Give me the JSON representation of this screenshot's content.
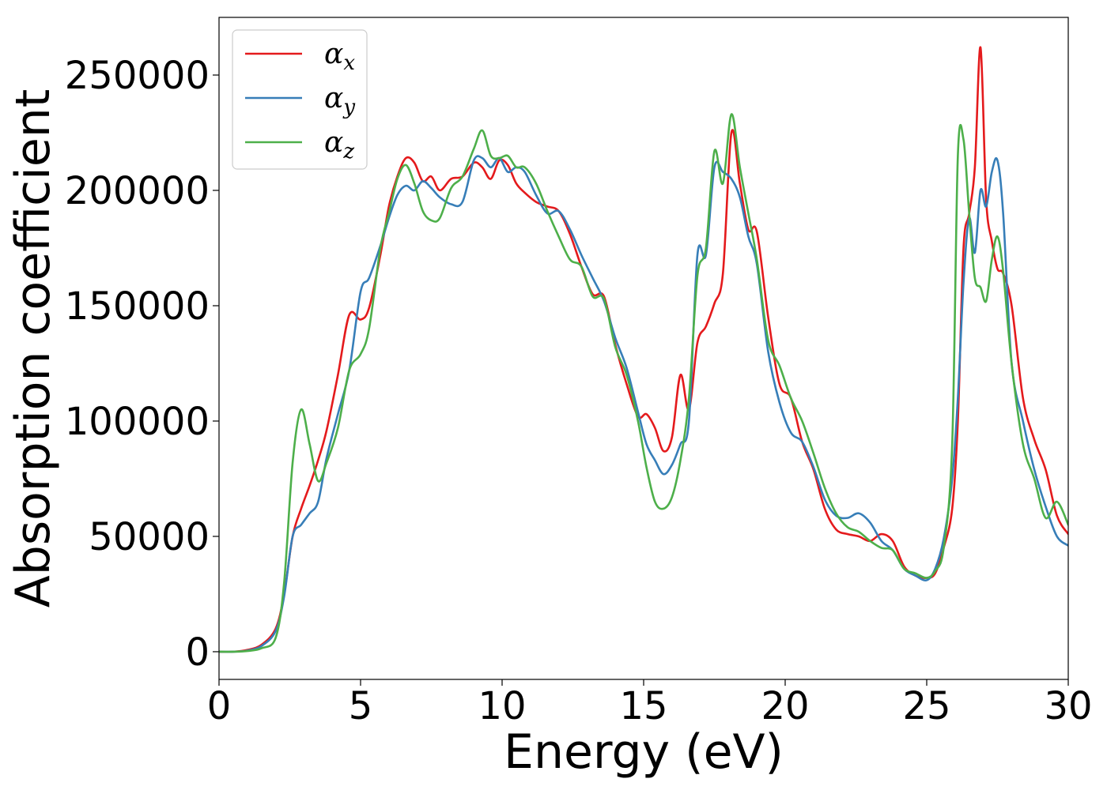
{
  "chart_data": {
    "type": "line",
    "title": "",
    "xlabel": "Energy (eV)",
    "ylabel": "Absorption coefficient",
    "xlim": [
      0,
      30
    ],
    "ylim": [
      -12000,
      275000
    ],
    "xticks": [
      0,
      5,
      10,
      15,
      20,
      25,
      30
    ],
    "yticks": [
      0,
      50000,
      100000,
      150000,
      200000,
      250000
    ],
    "xtick_labels": [
      "0",
      "5",
      "10",
      "15",
      "20",
      "25",
      "30"
    ],
    "ytick_labels": [
      "0",
      "50000",
      "100000",
      "150000",
      "200000",
      "250000"
    ],
    "grid": false,
    "legend_position": "top-left",
    "series": [
      {
        "name": "α_x",
        "legend_base": "α",
        "legend_sub": "x",
        "color": "#e41a1c",
        "x": [
          0,
          0.5,
          1.0,
          1.5,
          2.0,
          2.3,
          2.6,
          2.9,
          3.2,
          3.5,
          3.8,
          4.2,
          4.6,
          5.0,
          5.3,
          5.7,
          6.0,
          6.3,
          6.6,
          6.9,
          7.2,
          7.5,
          7.8,
          8.2,
          8.6,
          9.0,
          9.3,
          9.6,
          9.9,
          10.2,
          10.5,
          10.8,
          11.2,
          11.6,
          12.0,
          12.4,
          12.8,
          13.2,
          13.6,
          14.0,
          14.4,
          14.8,
          15.1,
          15.4,
          15.7,
          16.0,
          16.3,
          16.6,
          16.9,
          17.2,
          17.5,
          17.8,
          18.1,
          18.4,
          18.7,
          19.0,
          19.4,
          19.8,
          20.2,
          20.6,
          21.0,
          21.4,
          21.8,
          22.2,
          22.6,
          23.0,
          23.4,
          23.8,
          24.2,
          24.6,
          25.0,
          25.3,
          25.6,
          25.9,
          26.1,
          26.3,
          26.5,
          26.7,
          26.9,
          27.1,
          27.3,
          27.5,
          27.7,
          28.0,
          28.4,
          28.8,
          29.2,
          29.6,
          30.0
        ],
        "values": [
          0,
          0,
          800,
          3000,
          10000,
          25000,
          50000,
          62000,
          72000,
          83000,
          96000,
          120000,
          146000,
          144000,
          149000,
          172000,
          193000,
          206000,
          214000,
          212000,
          204000,
          206000,
          200000,
          205000,
          206000,
          212000,
          210000,
          205000,
          213000,
          211000,
          203000,
          199000,
          195000,
          193000,
          191000,
          181000,
          167000,
          155000,
          154000,
          133000,
          116000,
          102000,
          103000,
          97000,
          87000,
          93000,
          120000,
          105000,
          134000,
          141000,
          151000,
          164000,
          225000,
          203000,
          183000,
          182000,
          145000,
          116000,
          110000,
          91000,
          79000,
          62000,
          53000,
          51000,
          50000,
          48000,
          51000,
          48000,
          37000,
          33000,
          32000,
          34000,
          45000,
          62000,
          100000,
          175000,
          190000,
          210000,
          262000,
          196000,
          178000,
          166000,
          164000,
          150000,
          110000,
          92000,
          79000,
          59000,
          51000
        ]
      },
      {
        "name": "α_y",
        "legend_base": "α",
        "legend_sub": "y",
        "color": "#377eb8",
        "x": [
          0,
          0.5,
          1.0,
          1.5,
          2.0,
          2.3,
          2.6,
          2.9,
          3.2,
          3.5,
          3.8,
          4.2,
          4.6,
          5.0,
          5.3,
          5.7,
          6.0,
          6.3,
          6.6,
          6.9,
          7.2,
          7.5,
          7.8,
          8.2,
          8.6,
          9.0,
          9.3,
          9.6,
          9.9,
          10.2,
          10.5,
          10.8,
          11.2,
          11.6,
          12.0,
          12.4,
          12.8,
          13.2,
          13.6,
          14.0,
          14.4,
          14.8,
          15.1,
          15.4,
          15.7,
          16.0,
          16.3,
          16.6,
          16.9,
          17.2,
          17.5,
          17.8,
          18.1,
          18.4,
          18.7,
          19.0,
          19.4,
          19.8,
          20.2,
          20.6,
          21.0,
          21.4,
          21.8,
          22.2,
          22.6,
          23.0,
          23.4,
          23.8,
          24.2,
          24.6,
          25.0,
          25.3,
          25.6,
          25.9,
          26.1,
          26.3,
          26.5,
          26.7,
          26.9,
          27.1,
          27.3,
          27.5,
          27.7,
          28.0,
          28.4,
          28.8,
          29.2,
          29.6,
          30.0
        ],
        "values": [
          0,
          0,
          500,
          2500,
          9000,
          24000,
          50000,
          55000,
          60000,
          65000,
          84000,
          103000,
          122000,
          156000,
          162000,
          176000,
          188000,
          198000,
          202000,
          200000,
          204000,
          201000,
          197000,
          194000,
          195000,
          213000,
          214000,
          210000,
          214000,
          208000,
          210000,
          208000,
          198000,
          190000,
          191000,
          183000,
          172000,
          162000,
          152000,
          136000,
          123000,
          104000,
          90000,
          83000,
          77000,
          81000,
          90000,
          100000,
          172000,
          172000,
          210000,
          208000,
          205000,
          197000,
          180000,
          168000,
          130000,
          108000,
          95000,
          91000,
          80000,
          66000,
          59000,
          58000,
          60000,
          56000,
          48000,
          44000,
          36000,
          33000,
          31000,
          36000,
          49000,
          75000,
          110000,
          160000,
          188000,
          173000,
          200000,
          193000,
          208000,
          213000,
          190000,
          125000,
          100000,
          79000,
          63000,
          50000,
          46000
        ]
      },
      {
        "name": "α_z",
        "legend_base": "α",
        "legend_sub": "z",
        "color": "#4daf4a",
        "x": [
          0,
          0.5,
          1.0,
          1.5,
          2.0,
          2.3,
          2.6,
          2.9,
          3.2,
          3.5,
          3.8,
          4.2,
          4.6,
          5.0,
          5.3,
          5.7,
          6.0,
          6.3,
          6.6,
          6.9,
          7.2,
          7.5,
          7.8,
          8.2,
          8.6,
          9.0,
          9.3,
          9.6,
          9.9,
          10.2,
          10.5,
          10.8,
          11.2,
          11.6,
          12.0,
          12.4,
          12.8,
          13.2,
          13.6,
          14.0,
          14.4,
          14.8,
          15.1,
          15.4,
          15.7,
          16.0,
          16.3,
          16.6,
          16.9,
          17.2,
          17.5,
          17.8,
          18.1,
          18.4,
          18.7,
          19.0,
          19.4,
          19.8,
          20.2,
          20.6,
          21.0,
          21.4,
          21.8,
          22.2,
          22.6,
          23.0,
          23.4,
          23.8,
          24.2,
          24.6,
          25.0,
          25.3,
          25.6,
          25.9,
          26.1,
          26.3,
          26.5,
          26.7,
          26.9,
          27.1,
          27.3,
          27.5,
          27.7,
          28.0,
          28.4,
          28.8,
          29.2,
          29.6,
          30.0
        ],
        "values": [
          0,
          0,
          300,
          1500,
          6000,
          30000,
          82000,
          105000,
          90000,
          74000,
          82000,
          97000,
          122000,
          129000,
          140000,
          175000,
          190000,
          205000,
          211000,
          203000,
          191000,
          187000,
          188000,
          201000,
          206000,
          218000,
          226000,
          215000,
          214000,
          215000,
          210000,
          210000,
          203000,
          191000,
          180000,
          170000,
          167000,
          154000,
          153000,
          132000,
          120000,
          100000,
          80000,
          65000,
          62000,
          67000,
          83000,
          110000,
          163000,
          175000,
          217000,
          203000,
          233000,
          210000,
          190000,
          170000,
          135000,
          124000,
          110000,
          100000,
          86000,
          71000,
          60000,
          54000,
          52000,
          48000,
          45000,
          44000,
          36000,
          34000,
          32000,
          35000,
          45000,
          90000,
          215000,
          222000,
          190000,
          162000,
          158000,
          152000,
          170000,
          180000,
          165000,
          125000,
          90000,
          75000,
          58000,
          65000,
          55000
        ]
      }
    ]
  }
}
